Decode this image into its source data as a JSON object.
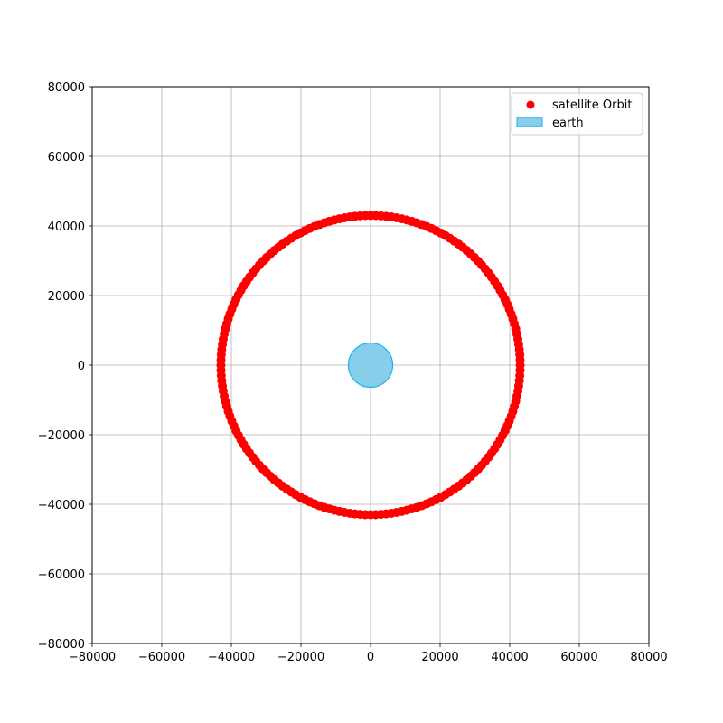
{
  "chart_data": {
    "type": "scatter",
    "title": "",
    "xlabel": "",
    "ylabel": "",
    "xlim": [
      -80000,
      80000
    ],
    "ylim": [
      -80000,
      80000
    ],
    "x_ticks": [
      -80000,
      -60000,
      -40000,
      -20000,
      0,
      20000,
      40000,
      60000,
      80000
    ],
    "y_ticks": [
      -80000,
      -60000,
      -40000,
      -20000,
      0,
      20000,
      40000,
      60000,
      80000
    ],
    "x_tick_labels": [
      "−80000",
      "−60000",
      "−40000",
      "−20000",
      "0",
      "20000",
      "40000",
      "60000",
      "80000"
    ],
    "y_tick_labels": [
      "−80000",
      "−60000",
      "−40000",
      "−20000",
      "0",
      "20000",
      "40000",
      "60000",
      "80000"
    ],
    "grid": true,
    "legend_position": "top-right",
    "series": [
      {
        "name": "satellite Orbit",
        "kind": "scatter",
        "color": "#ff0000",
        "center": [
          0,
          0
        ],
        "radius": 43000,
        "point_count": 180
      },
      {
        "name": "earth",
        "kind": "circle",
        "fill": "#87ceeb",
        "edge": "#1ab6e8",
        "center": [
          0,
          0
        ],
        "radius": 6371
      }
    ]
  }
}
